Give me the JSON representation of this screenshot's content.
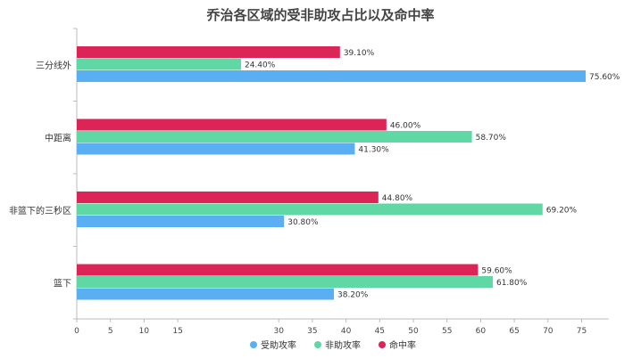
{
  "chart_data": {
    "type": "bar",
    "orientation": "horizontal",
    "title": "乔治各区域的受非助攻占比以及命中率",
    "categories": [
      "三分线外",
      "中距离",
      "非篮下的三秒区",
      "篮下"
    ],
    "series": [
      {
        "name": "命中率",
        "color": "#dc2456",
        "values": [
          39.1,
          46.0,
          44.8,
          59.6
        ],
        "labels": [
          "39.10%",
          "46.00%",
          "44.80%",
          "59.60%"
        ]
      },
      {
        "name": "非助攻率",
        "color": "#5fd8a6",
        "values": [
          24.4,
          58.7,
          69.2,
          61.8
        ],
        "labels": [
          "24.40%",
          "58.70%",
          "69.20%",
          "61.80%"
        ]
      },
      {
        "name": "受助攻率",
        "color": "#5aaef2",
        "values": [
          75.6,
          41.3,
          30.8,
          38.2
        ],
        "labels": [
          "75.60%",
          "41.30%",
          "30.80%",
          "38.20%"
        ]
      }
    ],
    "xlim": [
      0,
      79
    ],
    "x_ticks": [
      "0",
      "5",
      "10",
      "15",
      "30",
      "35",
      "40",
      "45",
      "50",
      "55",
      "60",
      "65",
      "70",
      "75"
    ],
    "legend_order": [
      "受助攻率",
      "非助攻率",
      "命中率"
    ],
    "legend_position": "bottom",
    "grid": false
  }
}
